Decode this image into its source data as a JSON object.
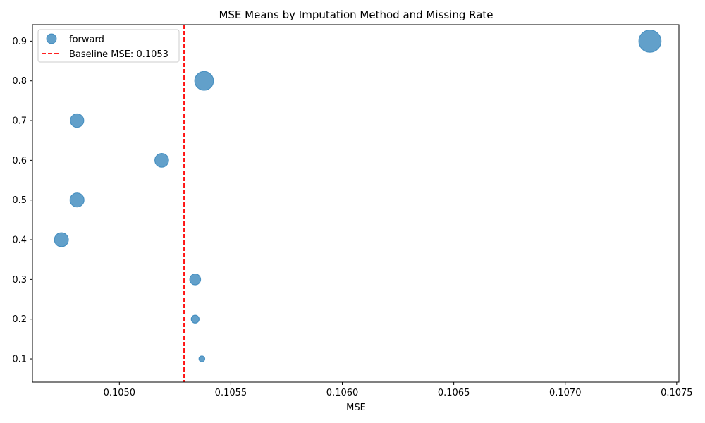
{
  "chart_data": {
    "type": "scatter",
    "title": "MSE Means by Imputation Method and Missing Rate",
    "xlabel": "MSE",
    "ylabel": "",
    "xlim": [
      0.10461,
      0.10751
    ],
    "ylim": [
      0.0415,
      0.9415
    ],
    "xticks": [
      0.105,
      0.1055,
      0.106,
      0.1065,
      0.107,
      0.1075
    ],
    "xtick_labels": [
      "0.1050",
      "0.1055",
      "0.1060",
      "0.1065",
      "0.1070",
      "0.1075"
    ],
    "yticks": [
      0.1,
      0.2,
      0.3,
      0.4,
      0.5,
      0.6,
      0.7,
      0.8,
      0.9
    ],
    "ytick_labels": [
      "0.1",
      "0.2",
      "0.3",
      "0.4",
      "0.5",
      "0.6",
      "0.7",
      "0.8",
      "0.9"
    ],
    "grid": false,
    "legend_position": "top-left",
    "series": [
      {
        "name": "forward",
        "color": "#1f77b4",
        "alpha": 0.7,
        "points": [
          {
            "x": 0.10537,
            "y": 0.1,
            "size": 0.5
          },
          {
            "x": 0.10534,
            "y": 0.2,
            "size": 0.9
          },
          {
            "x": 0.10534,
            "y": 0.3,
            "size": 1.7
          },
          {
            "x": 0.10474,
            "y": 0.4,
            "size": 2.8
          },
          {
            "x": 0.10481,
            "y": 0.5,
            "size": 2.8
          },
          {
            "x": 0.10519,
            "y": 0.6,
            "size": 2.7
          },
          {
            "x": 0.10481,
            "y": 0.7,
            "size": 2.6
          },
          {
            "x": 0.10538,
            "y": 0.8,
            "size": 5.0
          },
          {
            "x": 0.10738,
            "y": 0.9,
            "size": 7.0
          }
        ]
      }
    ],
    "reference_lines": [
      {
        "orientation": "vertical",
        "x": 0.10529,
        "color": "#ff0000",
        "style": "dashed",
        "label": "Baseline MSE: 0.1053"
      }
    ]
  }
}
